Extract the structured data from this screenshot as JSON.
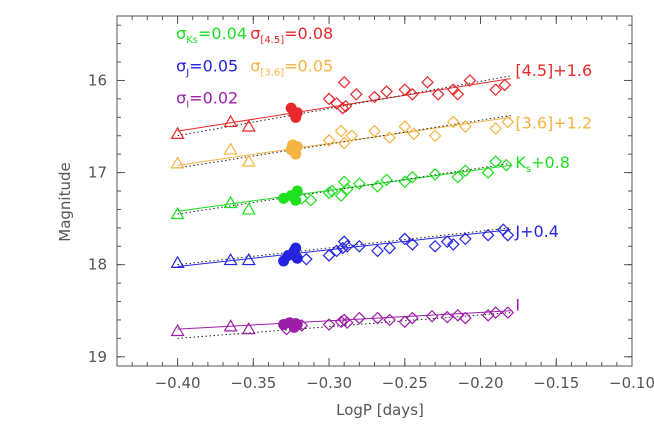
{
  "chart_data": {
    "type": "scatter",
    "xlabel": "LogP [days]",
    "ylabel": "Magnitude",
    "xlim": [
      -0.44,
      -0.1
    ],
    "ylim": [
      19.1,
      15.3
    ],
    "y_inverted": true,
    "xticks": [
      -0.4,
      -0.35,
      -0.3,
      -0.25,
      -0.2,
      -0.15,
      -0.1
    ],
    "xtick_labels": [
      "−0.40",
      "−0.35",
      "−0.30",
      "−0.25",
      "−0.20",
      "−0.15",
      "−0.10"
    ],
    "yticks": [
      16,
      17,
      18,
      19
    ],
    "ytick_labels": [
      "16",
      "17",
      "18",
      "19"
    ],
    "grid": false,
    "series": [
      {
        "name": "[4.5]+1.6",
        "color": "#e8282a",
        "triangles": [
          [
            -0.4,
            16.58
          ],
          [
            -0.365,
            16.45
          ],
          [
            -0.353,
            16.5
          ]
        ],
        "circles": [
          [
            -0.325,
            16.3
          ],
          [
            -0.323,
            16.36
          ],
          [
            -0.322,
            16.4
          ],
          [
            -0.321,
            16.35
          ]
        ],
        "diamonds": [
          [
            -0.3,
            16.2
          ],
          [
            -0.295,
            16.25
          ],
          [
            -0.291,
            16.3
          ],
          [
            -0.29,
            16.02
          ],
          [
            -0.289,
            16.28
          ],
          [
            -0.282,
            16.15
          ],
          [
            -0.27,
            16.18
          ],
          [
            -0.262,
            16.12
          ],
          [
            -0.25,
            16.1
          ],
          [
            -0.245,
            16.15
          ],
          [
            -0.235,
            16.02
          ],
          [
            -0.228,
            16.15
          ],
          [
            -0.218,
            16.1
          ],
          [
            -0.215,
            16.15
          ],
          [
            -0.207,
            16.0
          ],
          [
            -0.19,
            16.1
          ],
          [
            -0.184,
            16.05
          ]
        ],
        "fit_line": [
          [
            -0.4,
            16.55
          ],
          [
            -0.18,
            15.98
          ]
        ],
        "fit_line_dotted": [
          [
            -0.4,
            16.6
          ],
          [
            -0.18,
            15.95
          ]
        ]
      },
      {
        "name": "[3.6]+1.2",
        "color": "#f5b342",
        "triangles": [
          [
            -0.4,
            16.9
          ],
          [
            -0.365,
            16.75
          ],
          [
            -0.353,
            16.88
          ]
        ],
        "circles": [
          [
            -0.325,
            16.75
          ],
          [
            -0.324,
            16.7
          ],
          [
            -0.322,
            16.8
          ],
          [
            -0.321,
            16.72
          ]
        ],
        "diamonds": [
          [
            -0.3,
            16.65
          ],
          [
            -0.292,
            16.55
          ],
          [
            -0.29,
            16.68
          ],
          [
            -0.285,
            16.6
          ],
          [
            -0.27,
            16.55
          ],
          [
            -0.26,
            16.62
          ],
          [
            -0.25,
            16.5
          ],
          [
            -0.244,
            16.58
          ],
          [
            -0.23,
            16.6
          ],
          [
            -0.218,
            16.45
          ],
          [
            -0.21,
            16.5
          ],
          [
            -0.19,
            16.52
          ],
          [
            -0.182,
            16.45
          ]
        ],
        "fit_line": [
          [
            -0.4,
            16.92
          ],
          [
            -0.18,
            16.4
          ]
        ],
        "fit_line_dotted": [
          [
            -0.4,
            16.95
          ],
          [
            -0.18,
            16.38
          ]
        ]
      },
      {
        "name": "Ks+0.8",
        "color": "#1ee01e",
        "triangles": [
          [
            -0.4,
            17.45
          ],
          [
            -0.365,
            17.33
          ],
          [
            -0.353,
            17.4
          ]
        ],
        "circles": [
          [
            -0.33,
            17.28
          ],
          [
            -0.325,
            17.25
          ],
          [
            -0.322,
            17.3
          ],
          [
            -0.321,
            17.2
          ]
        ],
        "diamonds": [
          [
            -0.318,
            17.28
          ],
          [
            -0.312,
            17.3
          ],
          [
            -0.3,
            17.22
          ],
          [
            -0.298,
            17.2
          ],
          [
            -0.292,
            17.25
          ],
          [
            -0.29,
            17.1
          ],
          [
            -0.288,
            17.18
          ],
          [
            -0.28,
            17.12
          ],
          [
            -0.268,
            17.15
          ],
          [
            -0.262,
            17.08
          ],
          [
            -0.25,
            17.1
          ],
          [
            -0.245,
            17.05
          ],
          [
            -0.23,
            17.02
          ],
          [
            -0.215,
            17.05
          ],
          [
            -0.21,
            16.98
          ],
          [
            -0.195,
            17.0
          ],
          [
            -0.19,
            16.88
          ],
          [
            -0.183,
            16.92
          ]
        ],
        "fit_line": [
          [
            -0.4,
            17.42
          ],
          [
            -0.18,
            16.92
          ]
        ],
        "fit_line_dotted": [
          [
            -0.4,
            17.45
          ],
          [
            -0.18,
            16.9
          ]
        ]
      },
      {
        "name": "J+0.4",
        "color": "#2424e0",
        "triangles": [
          [
            -0.4,
            17.98
          ],
          [
            -0.365,
            17.95
          ],
          [
            -0.353,
            17.95
          ]
        ],
        "circles": [
          [
            -0.33,
            17.96
          ],
          [
            -0.327,
            17.9
          ],
          [
            -0.323,
            17.85
          ],
          [
            -0.322,
            17.82
          ],
          [
            -0.321,
            17.93
          ]
        ],
        "diamonds": [
          [
            -0.315,
            17.94
          ],
          [
            -0.3,
            17.9
          ],
          [
            -0.295,
            17.85
          ],
          [
            -0.291,
            17.82
          ],
          [
            -0.29,
            17.75
          ],
          [
            -0.288,
            17.8
          ],
          [
            -0.28,
            17.8
          ],
          [
            -0.268,
            17.85
          ],
          [
            -0.26,
            17.82
          ],
          [
            -0.25,
            17.72
          ],
          [
            -0.245,
            17.78
          ],
          [
            -0.23,
            17.8
          ],
          [
            -0.222,
            17.75
          ],
          [
            -0.218,
            17.78
          ],
          [
            -0.21,
            17.72
          ],
          [
            -0.195,
            17.68
          ],
          [
            -0.185,
            17.62
          ],
          [
            -0.182,
            17.68
          ]
        ],
        "fit_line": [
          [
            -0.4,
            18.02
          ],
          [
            -0.18,
            17.62
          ]
        ],
        "fit_line_dotted": [
          [
            -0.4,
            18.0
          ],
          [
            -0.18,
            17.6
          ]
        ]
      },
      {
        "name": "I",
        "color": "#9b1ea8",
        "triangles": [
          [
            -0.4,
            18.72
          ],
          [
            -0.365,
            18.67
          ],
          [
            -0.353,
            18.7
          ]
        ],
        "circles": [
          [
            -0.33,
            18.65
          ],
          [
            -0.326,
            18.63
          ],
          [
            -0.323,
            18.68
          ],
          [
            -0.322,
            18.64
          ],
          [
            -0.321,
            18.65
          ]
        ],
        "diamonds": [
          [
            -0.328,
            18.7
          ],
          [
            -0.318,
            18.66
          ],
          [
            -0.3,
            18.65
          ],
          [
            -0.292,
            18.62
          ],
          [
            -0.29,
            18.6
          ],
          [
            -0.288,
            18.63
          ],
          [
            -0.28,
            18.58
          ],
          [
            -0.268,
            18.58
          ],
          [
            -0.26,
            18.6
          ],
          [
            -0.25,
            18.62
          ],
          [
            -0.245,
            18.58
          ],
          [
            -0.232,
            18.56
          ],
          [
            -0.222,
            18.57
          ],
          [
            -0.215,
            18.55
          ],
          [
            -0.21,
            18.58
          ],
          [
            -0.195,
            18.55
          ],
          [
            -0.19,
            18.52
          ],
          [
            -0.182,
            18.52
          ]
        ],
        "fit_line": [
          [
            -0.4,
            18.7
          ],
          [
            -0.18,
            18.5
          ]
        ],
        "fit_line_dotted": [
          [
            -0.4,
            18.8
          ],
          [
            -0.18,
            18.52
          ]
        ]
      }
    ],
    "annotations": [
      {
        "base": "σ",
        "sub": "Ks",
        "value": "=0.04",
        "color": "#1ee01e",
        "x": -0.401,
        "y": 15.55
      },
      {
        "base": "σ",
        "sub": "J",
        "value": "=0.05",
        "color": "#2424e0",
        "x": -0.401,
        "y": 15.9
      },
      {
        "base": "σ",
        "sub": "I",
        "value": "=0.02",
        "color": "#9b1ea8",
        "x": -0.401,
        "y": 16.25
      },
      {
        "base": "σ",
        "sub": "[4.5]",
        "value": "=0.08",
        "color": "#e8282a",
        "x": -0.352,
        "y": 15.55
      },
      {
        "base": "σ",
        "sub": "[3.6]",
        "value": "=0.05",
        "color": "#f5b342",
        "x": -0.352,
        "y": 15.9
      }
    ],
    "series_labels": [
      {
        "text": "[4.5]+1.6",
        "color": "#e8282a",
        "x": -0.177,
        "y": 15.95
      },
      {
        "text": "[3.6]+1.2",
        "color": "#f5b342",
        "x": -0.177,
        "y": 16.52
      },
      {
        "text": "K",
        "sub": "s",
        "rest": "+0.8",
        "color": "#1ee01e",
        "x": -0.177,
        "y": 16.95
      },
      {
        "text": "J+0.4",
        "color": "#2424e0",
        "x": -0.177,
        "y": 17.7
      },
      {
        "text": "I",
        "color": "#9b1ea8",
        "x": -0.177,
        "y": 18.5
      }
    ]
  }
}
